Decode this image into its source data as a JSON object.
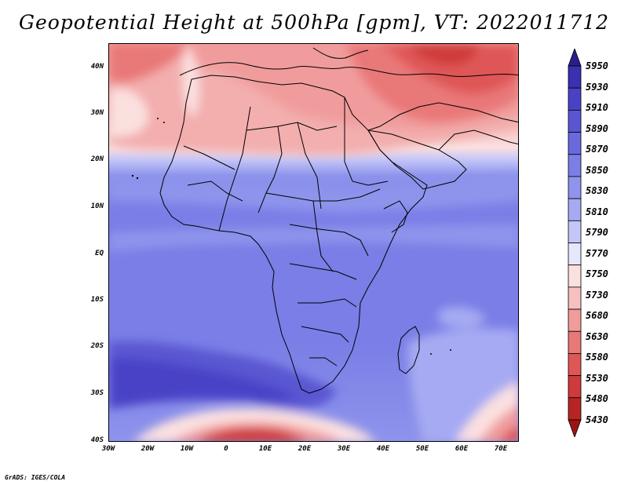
{
  "title": "Geopotential Height at 500hPa [gpm], VT: 2022011712",
  "credit": "GrADS: IGES/COLA",
  "y_ticks": [
    "40N",
    "30N",
    "20N",
    "10N",
    "EQ",
    "10S",
    "20S",
    "30S",
    "40S"
  ],
  "x_ticks": [
    "30W",
    "20W",
    "10W",
    "0",
    "10E",
    "20E",
    "30E",
    "40E",
    "50E",
    "60E",
    "70E"
  ],
  "colorbar": {
    "levels": [
      "5950",
      "5930",
      "5910",
      "5890",
      "5870",
      "5850",
      "5830",
      "5810",
      "5790",
      "5770",
      "5750",
      "5730",
      "5680",
      "5630",
      "5580",
      "5530",
      "5480",
      "5430"
    ],
    "colors": [
      "#2a1e8e",
      "#3a30b0",
      "#4a42c6",
      "#5a56d2",
      "#6a6ade",
      "#7a7ee6",
      "#8e94ec",
      "#a6aaf2",
      "#c4c6f8",
      "#e6e6fc",
      "#fbe0e0",
      "#f7c0c0",
      "#f19c9c",
      "#e97878",
      "#df5656",
      "#cf3a3a",
      "#b82424",
      "#9c1414"
    ]
  },
  "map": {
    "field": "500 hPa geopotential height",
    "units": "gpm",
    "valid_time": "2022011712",
    "region": "Africa",
    "lon_range": [
      -30,
      75
    ],
    "lat_range": [
      -40,
      45
    ]
  }
}
